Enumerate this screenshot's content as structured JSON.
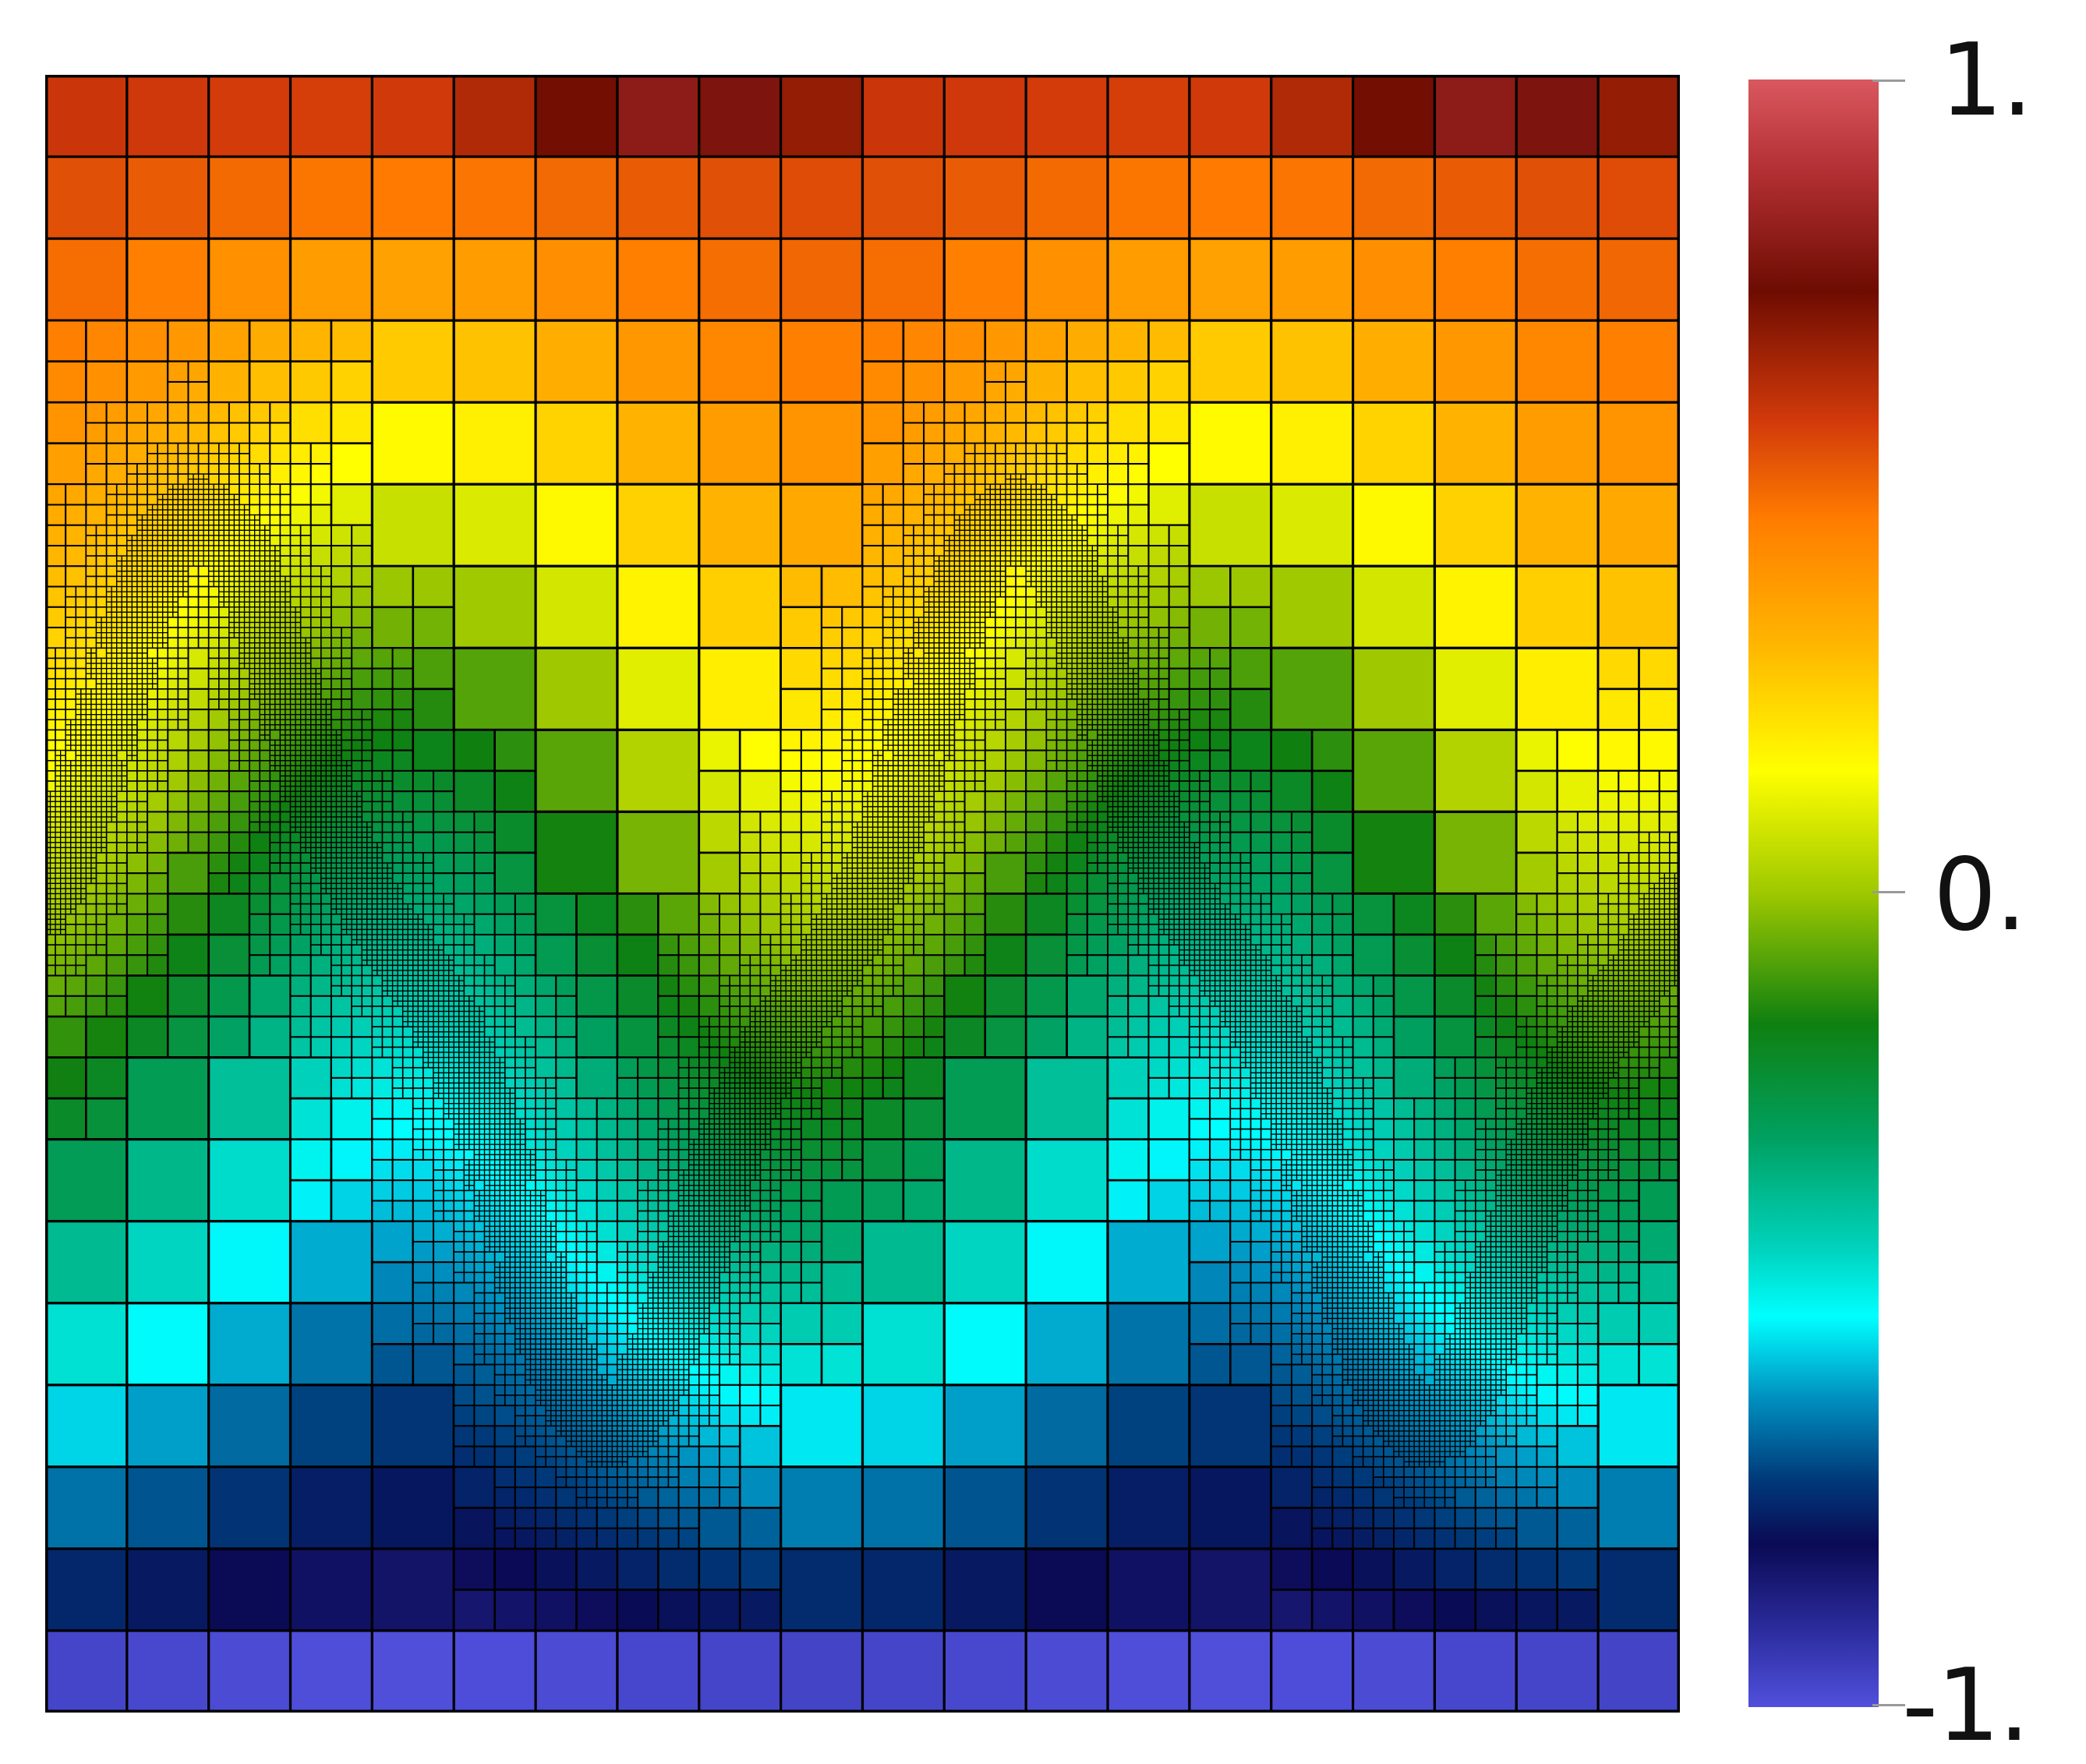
{
  "colorbar": {
    "max_label": "1.",
    "mid_label": "0.",
    "min_label": "-1.",
    "range": [
      -1,
      1
    ],
    "stops": [
      {
        "v": 1.0,
        "color": "#d9575f"
      },
      {
        "v": 0.88,
        "color": "#b02e30"
      },
      {
        "v": 0.74,
        "color": "#6e0c02"
      },
      {
        "v": 0.58,
        "color": "#d23a0a"
      },
      {
        "v": 0.46,
        "color": "#ff7c00"
      },
      {
        "v": 0.3,
        "color": "#ffb800"
      },
      {
        "v": 0.15,
        "color": "#ffff00"
      },
      {
        "v": 0.0,
        "color": "#9ec800"
      },
      {
        "v": -0.16,
        "color": "#0f8010"
      },
      {
        "v": -0.3,
        "color": "#00a060"
      },
      {
        "v": -0.44,
        "color": "#00d4c0"
      },
      {
        "v": -0.52,
        "color": "#00ffff"
      },
      {
        "v": -0.62,
        "color": "#0090c0"
      },
      {
        "v": -0.72,
        "color": "#003a7a"
      },
      {
        "v": -0.8,
        "color": "#0a0a55"
      },
      {
        "v": -0.9,
        "color": "#2a2a9a"
      },
      {
        "v": -1.0,
        "color": "#5050dd"
      }
    ]
  },
  "mesh": {
    "coarse_cells_per_side": 20,
    "line_color": "#000000"
  },
  "field": {
    "interface_shape": "two-period wave",
    "value_top": 0.62,
    "value_bottom": -0.9
  }
}
